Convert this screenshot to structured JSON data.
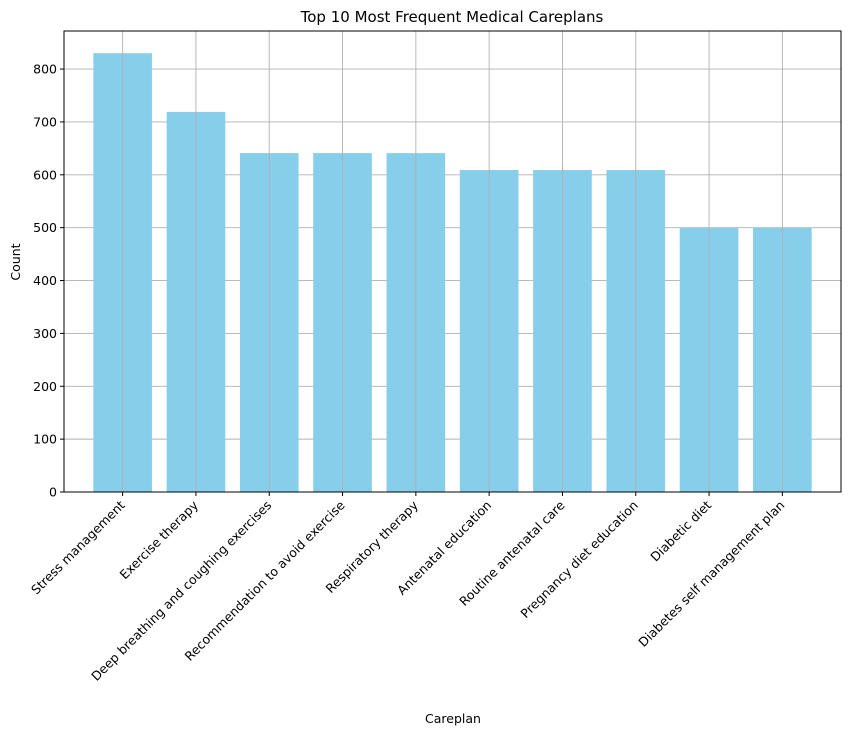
{
  "chart_data": {
    "type": "bar",
    "title": "Top 10 Most Frequent Medical Careplans",
    "xlabel": "Careplan",
    "ylabel": "Count",
    "categories": [
      "Stress management",
      "Exercise therapy",
      "Deep breathing and coughing exercises",
      "Recommendation to avoid exercise",
      "Respiratory therapy",
      "Antenatal education",
      "Routine antenatal care",
      "Pregnancy diet education",
      "Diabetic diet",
      "Diabetes self management plan"
    ],
    "values": [
      830,
      719,
      641,
      641,
      641,
      609,
      609,
      609,
      500,
      500
    ],
    "ylim": [
      0,
      872
    ],
    "yticks": [
      "0",
      "100",
      "200",
      "300",
      "400",
      "500",
      "600",
      "700",
      "800"
    ],
    "grid": true,
    "bar_color": "#87ceeb",
    "grid_color": "#b0b0b0"
  }
}
